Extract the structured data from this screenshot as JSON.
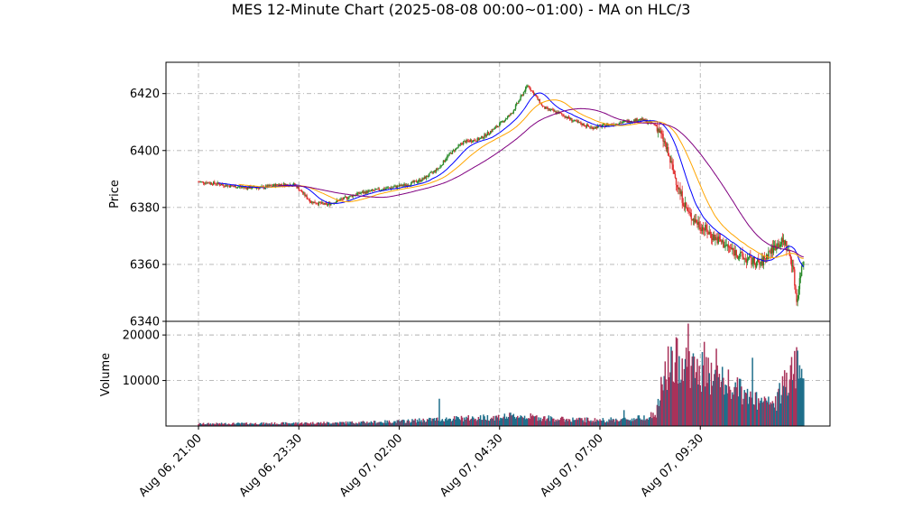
{
  "chart_data": {
    "type": "candlestick",
    "title": "MES 12-Minute Chart (2025-08-08 00:00~01:00) - MA on HLC/3",
    "price_panel": {
      "ylabel": "Price",
      "ylim": [
        6340,
        6431
      ],
      "yticks": [
        6340,
        6360,
        6380,
        6400,
        6420
      ],
      "grid": true
    },
    "volume_panel": {
      "ylabel": "Volume",
      "ylim": [
        0,
        23000
      ],
      "yticks": [
        10000,
        20000
      ],
      "grid": true
    },
    "x_axis": {
      "tick_labels": [
        "Aug 06, 21:00",
        "Aug 06, 23:30",
        "Aug 07, 02:00",
        "Aug 07, 04:30",
        "Aug 07, 07:00",
        "Aug 07, 09:30"
      ],
      "tick_bar_index": [
        0,
        12.5,
        25,
        37.5,
        50,
        62.5
      ],
      "label_rotation": 45
    },
    "colors": {
      "up": "#2a8a2a",
      "down": "#e03030",
      "volume_up": "#1f6f8b",
      "volume_down": "#a8325a",
      "ma_fast": "#0000ff",
      "ma_mid": "#ffa500",
      "ma_slow": "#800080",
      "grid": "#b0b0b0"
    },
    "price_path": [
      [
        0,
        6389
      ],
      [
        2,
        6388.5
      ],
      [
        4,
        6387.5
      ],
      [
        6,
        6387
      ],
      [
        8,
        6387
      ],
      [
        10,
        6388
      ],
      [
        12,
        6388
      ],
      [
        13,
        6385
      ],
      [
        14,
        6382
      ],
      [
        16,
        6381
      ],
      [
        18,
        6383
      ],
      [
        20,
        6385
      ],
      [
        22,
        6386
      ],
      [
        24,
        6387
      ],
      [
        26,
        6388
      ],
      [
        28,
        6390
      ],
      [
        30,
        6394
      ],
      [
        31,
        6398
      ],
      [
        33,
        6403
      ],
      [
        35,
        6404
      ],
      [
        37,
        6408
      ],
      [
        39,
        6413
      ],
      [
        40,
        6418
      ],
      [
        41,
        6423
      ],
      [
        42,
        6419
      ],
      [
        43,
        6415
      ],
      [
        45,
        6413
      ],
      [
        47,
        6410
      ],
      [
        49,
        6408
      ],
      [
        51,
        6409
      ],
      [
        53,
        6410
      ],
      [
        55,
        6411
      ],
      [
        57,
        6409
      ],
      [
        58,
        6403
      ],
      [
        59,
        6394
      ],
      [
        60,
        6385
      ],
      [
        61,
        6378
      ],
      [
        62,
        6375
      ],
      [
        64,
        6370
      ],
      [
        66,
        6366
      ],
      [
        68,
        6362
      ],
      [
        70,
        6360
      ],
      [
        71,
        6364
      ],
      [
        72,
        6367
      ],
      [
        73,
        6368
      ],
      [
        74,
        6360
      ],
      [
        74.5,
        6347
      ],
      [
        75,
        6357
      ],
      [
        75.4,
        6362
      ]
    ],
    "volume_path": [
      [
        0,
        500
      ],
      [
        10,
        600
      ],
      [
        20,
        800
      ],
      [
        25,
        1000
      ],
      [
        30,
        1500
      ],
      [
        35,
        1800
      ],
      [
        40,
        2200
      ],
      [
        45,
        1500
      ],
      [
        50,
        1300
      ],
      [
        54,
        1500
      ],
      [
        57,
        2500
      ],
      [
        58,
        11000
      ],
      [
        60,
        15000
      ],
      [
        62,
        12000
      ],
      [
        64,
        11000
      ],
      [
        66,
        9000
      ],
      [
        68,
        7000
      ],
      [
        70,
        5000
      ],
      [
        72,
        5000
      ],
      [
        73,
        10000
      ],
      [
        74.5,
        14000
      ],
      [
        75.4,
        9000
      ]
    ],
    "volume_spikes": [
      [
        30,
        6000
      ],
      [
        53,
        3500
      ],
      [
        58.5,
        17500
      ],
      [
        61,
        22500
      ],
      [
        63,
        18500
      ],
      [
        64.5,
        17000
      ],
      [
        69,
        15000
      ],
      [
        74.3,
        16500
      ]
    ]
  }
}
